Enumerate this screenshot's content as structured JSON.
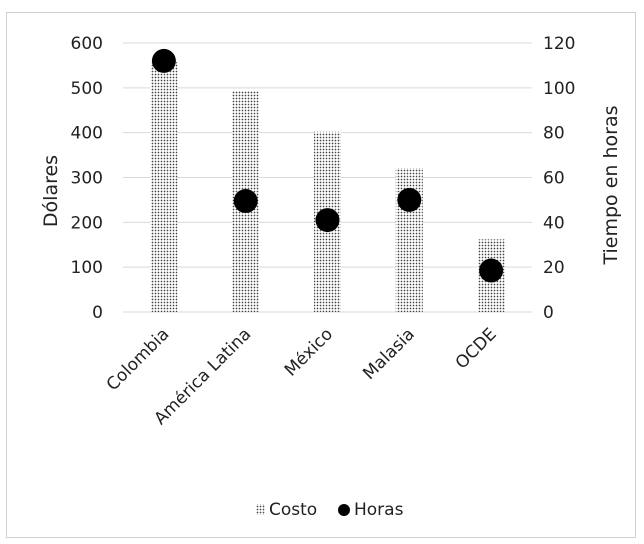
{
  "chart_data": {
    "type": "bar+scatter",
    "categories": [
      "Colombia",
      "América Latina",
      "México",
      "Malasia",
      "OCDE"
    ],
    "series": [
      {
        "name": "Costo",
        "type": "bar",
        "axis": "left",
        "values": [
          557,
          492,
          402,
          321,
          162
        ]
      },
      {
        "name": "Horas",
        "type": "scatter",
        "axis": "right",
        "values": [
          112,
          49.5,
          41,
          50,
          18.5
        ]
      }
    ],
    "ylabel": "Dólares",
    "y2label": "Tiempo en horas",
    "ylim": [
      0,
      600
    ],
    "y2lim": [
      0,
      120
    ],
    "yticks": [
      "0",
      "100",
      "200",
      "300",
      "400",
      "500",
      "600"
    ],
    "y2ticks": [
      "0",
      "20",
      "40",
      "60",
      "80",
      "100",
      "120"
    ],
    "grid": true,
    "legend_position": "bottom",
    "colors": {
      "bar_dots": "#444444",
      "marker": "#000000",
      "grid": "#d9d9d9"
    }
  }
}
